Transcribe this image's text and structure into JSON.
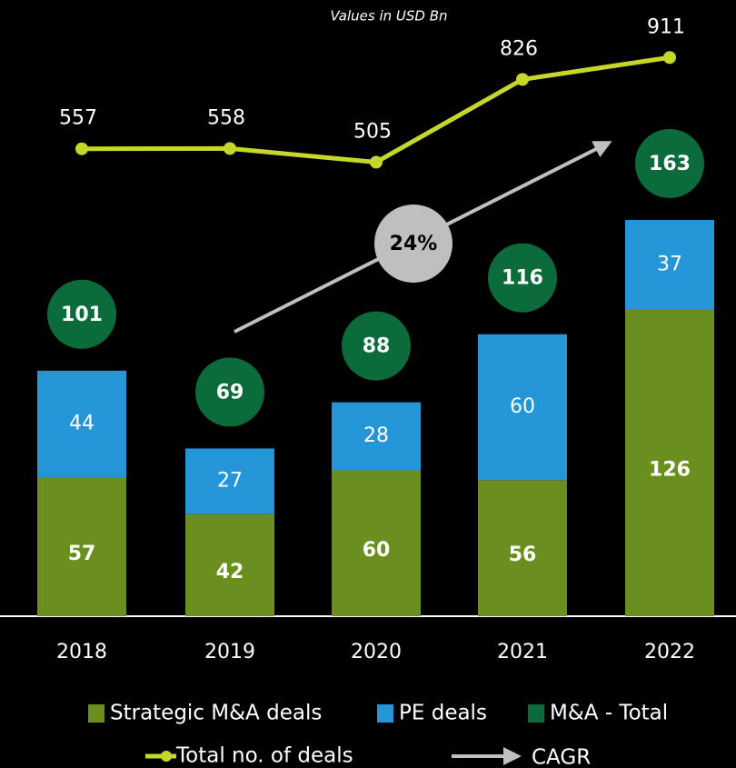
{
  "chart_data": {
    "type": "bar",
    "stacked": true,
    "subtitle": "Values in USD Bn",
    "categories": [
      "2018",
      "2019",
      "2020",
      "2021",
      "2022"
    ],
    "series": [
      {
        "name": "Strategic M&A deals",
        "color": "#6a8f1f",
        "values": [
          57,
          42,
          60,
          56,
          126
        ]
      },
      {
        "name": "PE deals",
        "color": "#2495d6",
        "values": [
          44,
          27,
          28,
          60,
          37
        ]
      },
      {
        "name": "M&A - Total",
        "color": "#0b6b3a",
        "marker": "circle",
        "values": [
          101,
          69,
          88,
          116,
          163
        ]
      },
      {
        "name": "Total no. of deals",
        "color": "#c5d82a",
        "type": "line",
        "axis": "y2",
        "values": [
          557,
          558,
          505,
          826,
          911
        ]
      }
    ],
    "ylim": [
      0,
      200
    ],
    "y2lim": [
      200,
      1000
    ],
    "annotation": {
      "text": "24%",
      "legend": "CAGR",
      "color": "#bfbfbf"
    }
  }
}
